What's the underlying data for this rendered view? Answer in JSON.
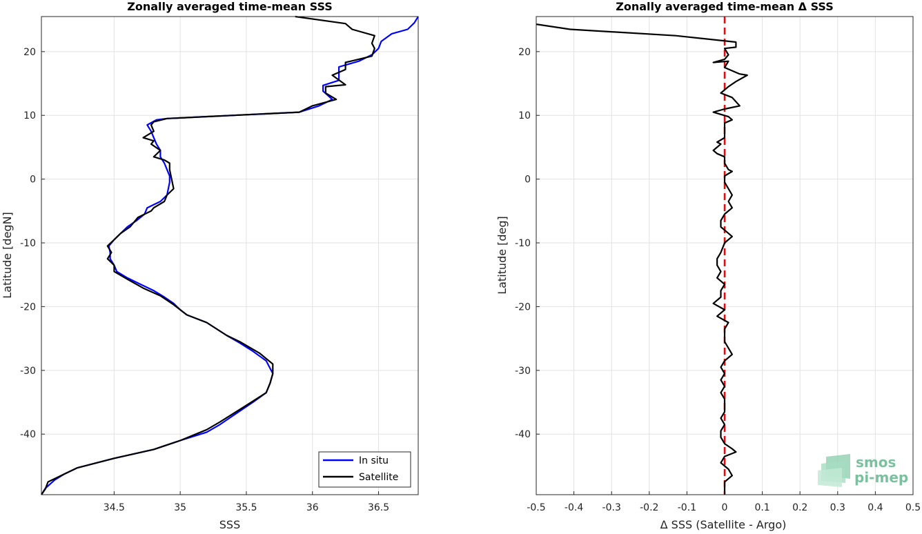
{
  "chart_data": [
    {
      "type": "line",
      "title": "Zonally averaged time-mean SSS",
      "xlabel": "SSS",
      "ylabel": "Latitude [degN]",
      "xlim": [
        33.95,
        36.8
      ],
      "ylim": [
        -49.5,
        25.5
      ],
      "xticks": [
        34.5,
        35,
        35.5,
        36,
        36.5
      ],
      "yticks": [
        -40,
        -30,
        -20,
        -10,
        0,
        10,
        20
      ],
      "grid": true,
      "legend": "bottom-right",
      "series": [
        {
          "name": "In situ",
          "color": "#0000ff",
          "points": [
            [
              36.8,
              25.5
            ],
            [
              36.77,
              24.5
            ],
            [
              36.72,
              23.5
            ],
            [
              36.6,
              22.8
            ],
            [
              36.52,
              21.6
            ],
            [
              36.5,
              20.5
            ],
            [
              36.45,
              19.5
            ],
            [
              36.35,
              18.5
            ],
            [
              36.2,
              17.6
            ],
            [
              36.2,
              16.5
            ],
            [
              36.2,
              15.5
            ],
            [
              36.08,
              14.7
            ],
            [
              36.08,
              13.8
            ],
            [
              36.15,
              12.5
            ],
            [
              36.05,
              11.5
            ],
            [
              35.9,
              10.5
            ],
            [
              34.9,
              9.5
            ],
            [
              34.82,
              9.3
            ],
            [
              34.75,
              8.5
            ],
            [
              34.78,
              7.5
            ],
            [
              34.8,
              6.5
            ],
            [
              34.82,
              5.5
            ],
            [
              34.85,
              4.5
            ],
            [
              34.85,
              3.5
            ],
            [
              34.88,
              2.5
            ],
            [
              34.9,
              1.5
            ],
            [
              34.92,
              0.5
            ],
            [
              34.92,
              -0.5
            ],
            [
              34.91,
              -1.5
            ],
            [
              34.9,
              -2.5
            ],
            [
              34.85,
              -3.5
            ],
            [
              34.75,
              -4.5
            ],
            [
              34.73,
              -5.5
            ],
            [
              34.67,
              -6.5
            ],
            [
              34.6,
              -7.5
            ],
            [
              34.55,
              -8.5
            ],
            [
              34.5,
              -9.5
            ],
            [
              34.46,
              -10.5
            ],
            [
              34.47,
              -11.5
            ],
            [
              34.47,
              -12.5
            ],
            [
              34.5,
              -13.5
            ],
            [
              34.52,
              -14.5
            ],
            [
              34.6,
              -15.5
            ],
            [
              34.7,
              -16.5
            ],
            [
              34.8,
              -17.5
            ],
            [
              34.88,
              -18.5
            ],
            [
              34.95,
              -19.5
            ],
            [
              35.0,
              -20.5
            ],
            [
              35.05,
              -21.3
            ],
            [
              35.2,
              -22.5
            ],
            [
              35.35,
              -24.5
            ],
            [
              35.45,
              -25.7
            ],
            [
              35.55,
              -27
            ],
            [
              35.65,
              -28.5
            ],
            [
              35.7,
              -30.5
            ],
            [
              35.68,
              -32
            ],
            [
              35.65,
              -33.5
            ],
            [
              35.55,
              -35
            ],
            [
              35.4,
              -37.1
            ],
            [
              35.3,
              -38.5
            ],
            [
              35.2,
              -39.7
            ],
            [
              35.0,
              -41
            ],
            [
              34.8,
              -42.4
            ],
            [
              34.5,
              -43.8
            ],
            [
              34.22,
              -45.3
            ],
            [
              34.12,
              -46.3
            ],
            [
              34.05,
              -47.2
            ],
            [
              33.98,
              -48.5
            ],
            [
              33.95,
              -49.5
            ]
          ]
        },
        {
          "name": "Satellite",
          "color": "#000000",
          "points": [
            [
              35.87,
              25.5
            ],
            [
              36.25,
              24.4
            ],
            [
              36.3,
              23.5
            ],
            [
              36.47,
              22.5
            ],
            [
              36.45,
              21.3
            ],
            [
              36.47,
              20.5
            ],
            [
              36.45,
              19.3
            ],
            [
              36.25,
              18.3
            ],
            [
              36.25,
              17.2
            ],
            [
              36.15,
              16.3
            ],
            [
              36.25,
              14.8
            ],
            [
              36.1,
              14.5
            ],
            [
              36.1,
              13.5
            ],
            [
              36.18,
              12.5
            ],
            [
              36.0,
              11.5
            ],
            [
              35.9,
              10.5
            ],
            [
              34.9,
              9.5
            ],
            [
              34.8,
              9
            ],
            [
              34.78,
              8.5
            ],
            [
              34.8,
              7.5
            ],
            [
              34.72,
              6.5
            ],
            [
              34.8,
              6
            ],
            [
              34.78,
              5.5
            ],
            [
              34.85,
              4.5
            ],
            [
              34.8,
              3.5
            ],
            [
              34.88,
              3
            ],
            [
              34.92,
              2.5
            ],
            [
              34.92,
              1.5
            ],
            [
              34.95,
              -1.5
            ],
            [
              34.9,
              -2.5
            ],
            [
              34.88,
              -3.5
            ],
            [
              34.8,
              -4.5
            ],
            [
              34.78,
              -5
            ],
            [
              34.68,
              -6
            ],
            [
              34.62,
              -7.5
            ],
            [
              34.55,
              -8.5
            ],
            [
              34.5,
              -9.5
            ],
            [
              34.45,
              -10.5
            ],
            [
              34.48,
              -11.5
            ],
            [
              34.45,
              -12.5
            ],
            [
              34.5,
              -13.5
            ],
            [
              34.5,
              -14.5
            ],
            [
              34.6,
              -15.7
            ],
            [
              34.72,
              -17.1
            ],
            [
              34.85,
              -18.3
            ],
            [
              34.95,
              -19.7
            ],
            [
              35.05,
              -21.3
            ],
            [
              35.2,
              -22.5
            ],
            [
              35.35,
              -24.5
            ],
            [
              35.45,
              -25.5
            ],
            [
              35.6,
              -27.3
            ],
            [
              35.7,
              -29
            ],
            [
              35.7,
              -30.5
            ],
            [
              35.68,
              -32
            ],
            [
              35.65,
              -33.5
            ],
            [
              35.5,
              -35.5
            ],
            [
              35.3,
              -38.1
            ],
            [
              35.2,
              -39.3
            ],
            [
              35.0,
              -41
            ],
            [
              34.8,
              -42.4
            ],
            [
              34.5,
              -43.8
            ],
            [
              34.22,
              -45.3
            ],
            [
              34.1,
              -46.5
            ],
            [
              34.0,
              -47.5
            ],
            [
              33.98,
              -48.6
            ],
            [
              33.95,
              -49.5
            ]
          ]
        }
      ]
    },
    {
      "type": "line",
      "title": "Zonally averaged time-mean Δ SSS",
      "xlabel": "Δ SSS (Satellite - Argo)",
      "ylabel": "Latitude [deg]",
      "xlim": [
        -0.5,
        0.5
      ],
      "ylim": [
        -49.5,
        25.5
      ],
      "xticks": [
        -0.5,
        -0.4,
        -0.3,
        -0.2,
        -0.1,
        0,
        0.1,
        0.2,
        0.3,
        0.4,
        0.5
      ],
      "yticks": [
        -40,
        -30,
        -20,
        -10,
        0,
        10,
        20
      ],
      "grid": true,
      "reference_line": {
        "x": 0,
        "color": "#ff0000",
        "style": "dashed"
      },
      "series": [
        {
          "color": "#000000",
          "points": [
            [
              -0.5,
              24.3
            ],
            [
              -0.41,
              23.5
            ],
            [
              -0.13,
              22.5
            ],
            [
              0.03,
              21.5
            ],
            [
              0.03,
              20.7
            ],
            [
              0.0,
              20.5
            ],
            [
              0.01,
              19.5
            ],
            [
              0.0,
              18.8
            ],
            [
              -0.03,
              18.3
            ],
            [
              0.01,
              18.5
            ],
            [
              0.0,
              17.5
            ],
            [
              0.04,
              16.5
            ],
            [
              0.06,
              16.3
            ],
            [
              0.03,
              15.3
            ],
            [
              0.01,
              14.5
            ],
            [
              -0.01,
              13.5
            ],
            [
              0.02,
              12.8
            ],
            [
              0.04,
              11.5
            ],
            [
              0.0,
              11
            ],
            [
              -0.03,
              10.5
            ],
            [
              0.01,
              9.8
            ],
            [
              0.02,
              9.3
            ],
            [
              0.0,
              8.8
            ],
            [
              0.0,
              7.5
            ],
            [
              0.0,
              6.5
            ],
            [
              -0.02,
              5.8
            ],
            [
              -0.01,
              5.5
            ],
            [
              -0.03,
              4.5
            ],
            [
              -0.02,
              4
            ],
            [
              0.0,
              3.5
            ],
            [
              0.0,
              2.5
            ],
            [
              0.01,
              1.5
            ],
            [
              0.02,
              1.2
            ],
            [
              0.0,
              0.5
            ],
            [
              0.0,
              -0.5
            ],
            [
              0.01,
              -1.5
            ],
            [
              0.02,
              -2.5
            ],
            [
              0.01,
              -3.5
            ],
            [
              0.02,
              -4.5
            ],
            [
              0.0,
              -5.5
            ],
            [
              -0.01,
              -6.5
            ],
            [
              -0.01,
              -7.5
            ],
            [
              0.01,
              -8.5
            ],
            [
              0.02,
              -9
            ],
            [
              0.0,
              -10
            ],
            [
              -0.01,
              -11.5
            ],
            [
              -0.02,
              -12.5
            ],
            [
              -0.02,
              -13.5
            ],
            [
              -0.01,
              -14.5
            ],
            [
              -0.02,
              -15.5
            ],
            [
              0.0,
              -16.5
            ],
            [
              -0.01,
              -17.5
            ],
            [
              -0.01,
              -18.5
            ],
            [
              -0.03,
              -19.5
            ],
            [
              0.0,
              -20.5
            ],
            [
              -0.02,
              -21.5
            ],
            [
              0.01,
              -22.5
            ],
            [
              0.0,
              -23.5
            ],
            [
              0.0,
              -24.5
            ],
            [
              0.0,
              -25.5
            ],
            [
              0.01,
              -26.5
            ],
            [
              0.02,
              -27.5
            ],
            [
              0.0,
              -28.5
            ],
            [
              -0.01,
              -29.5
            ],
            [
              0.0,
              -30.5
            ],
            [
              -0.01,
              -31.5
            ],
            [
              0.0,
              -32.5
            ],
            [
              -0.01,
              -33.5
            ],
            [
              0.0,
              -34.5
            ],
            [
              0.0,
              -35.5
            ],
            [
              0.0,
              -36.5
            ],
            [
              -0.01,
              -37.5
            ],
            [
              0.0,
              -38.5
            ],
            [
              -0.01,
              -39.5
            ],
            [
              -0.01,
              -40.5
            ],
            [
              0.0,
              -41.5
            ],
            [
              0.02,
              -42.3
            ],
            [
              0.03,
              -42.8
            ],
            [
              0.0,
              -43.5
            ],
            [
              -0.01,
              -44.5
            ],
            [
              0.01,
              -45.5
            ],
            [
              0.02,
              -46.5
            ],
            [
              0.0,
              -47.5
            ],
            [
              0.0,
              -48.5
            ],
            [
              0.0,
              -49.5
            ]
          ]
        }
      ]
    }
  ],
  "watermark": {
    "line1": "smos",
    "line2": "pi-mep",
    "color": "#7dbf9f"
  }
}
